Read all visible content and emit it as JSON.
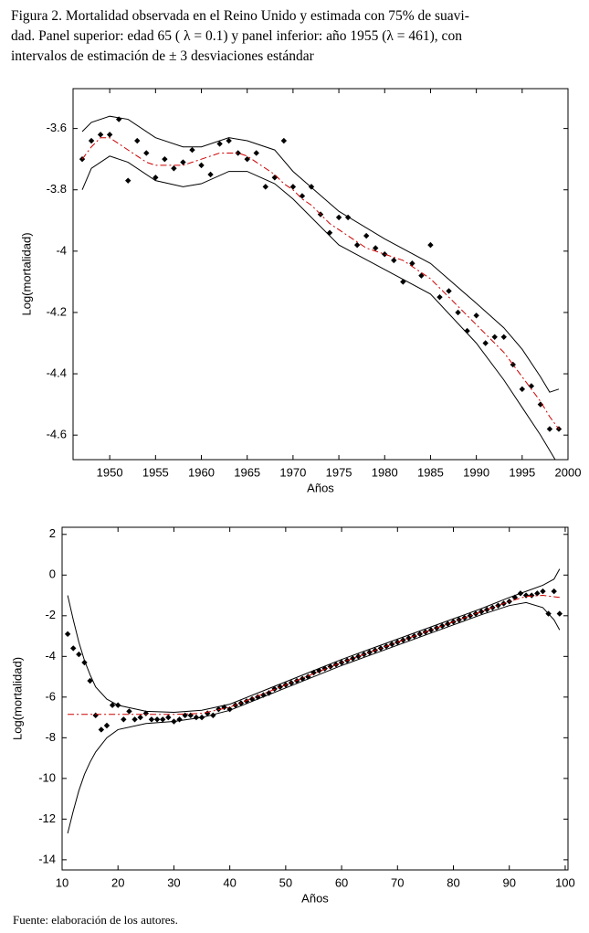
{
  "caption": [
    "Figura 2. Mortalidad observada en el Reino Unido y estimada con 75% de suavi-",
    "dad. Panel superior: edad 65 ( λ = 0.1) y panel inferior: año 1955 (λ = 461), con",
    "intervalos de estimación de ± 3 desviaciones estándar"
  ],
  "source": "Fuente: elaboración de los autores.",
  "chart_data": [
    {
      "type": "line",
      "xlabel": "Años",
      "ylabel": "Log(mortalidad)",
      "xlim": [
        1946,
        2000
      ],
      "ylim": [
        -4.68,
        -3.47
      ],
      "xticks": [
        1950,
        1955,
        1960,
        1965,
        1970,
        1975,
        1980,
        1985,
        1990,
        1995,
        2000
      ],
      "yticks": [
        -4.6,
        -4.4,
        -4.2,
        -4,
        -3.8,
        -3.6
      ],
      "series": [
        {
          "style": "markers",
          "color": "#000000",
          "x": [
            1947,
            1948,
            1949,
            1950,
            1951,
            1952,
            1953,
            1954,
            1955,
            1956,
            1957,
            1958,
            1959,
            1960,
            1961,
            1962,
            1963,
            1964,
            1965,
            1966,
            1967,
            1968,
            1969,
            1970,
            1971,
            1972,
            1973,
            1974,
            1975,
            1976,
            1977,
            1978,
            1979,
            1980,
            1981,
            1982,
            1983,
            1984,
            1985,
            1986,
            1987,
            1988,
            1989,
            1990,
            1991,
            1992,
            1993,
            1994,
            1995,
            1996,
            1997,
            1998,
            1999
          ],
          "values": [
            -3.7,
            -3.64,
            -3.62,
            -3.62,
            -3.57,
            -3.77,
            -3.64,
            -3.68,
            -3.76,
            -3.7,
            -3.73,
            -3.71,
            -3.67,
            -3.72,
            -3.75,
            -3.65,
            -3.64,
            -3.68,
            -3.7,
            -3.68,
            -3.79,
            -3.76,
            -3.64,
            -3.79,
            -3.82,
            -3.79,
            -3.88,
            -3.94,
            -3.89,
            -3.89,
            -3.98,
            -3.95,
            -3.99,
            -4.01,
            -4.03,
            -4.1,
            -4.04,
            -4.08,
            -3.98,
            -4.15,
            -4.13,
            -4.2,
            -4.26,
            -4.21,
            -4.3,
            -4.28,
            -4.28,
            -4.37,
            -4.45,
            -4.44,
            -4.5,
            -4.58,
            -4.58
          ]
        },
        {
          "style": "dashdot",
          "color": "#cc0000",
          "x": [
            1947,
            1948,
            1949,
            1950,
            1951,
            1952,
            1953,
            1954,
            1955,
            1956,
            1957,
            1958,
            1959,
            1960,
            1961,
            1962,
            1963,
            1964,
            1965,
            1966,
            1967,
            1968,
            1969,
            1970,
            1971,
            1972,
            1973,
            1974,
            1975,
            1976,
            1977,
            1978,
            1979,
            1980,
            1981,
            1982,
            1983,
            1984,
            1985,
            1986,
            1987,
            1988,
            1989,
            1990,
            1991,
            1992,
            1993,
            1994,
            1995,
            1996,
            1997,
            1998,
            1999
          ],
          "values": [
            -3.7,
            -3.66,
            -3.63,
            -3.63,
            -3.65,
            -3.67,
            -3.69,
            -3.71,
            -3.72,
            -3.72,
            -3.72,
            -3.72,
            -3.71,
            -3.7,
            -3.69,
            -3.68,
            -3.68,
            -3.68,
            -3.69,
            -3.71,
            -3.73,
            -3.75,
            -3.78,
            -3.8,
            -3.83,
            -3.85,
            -3.88,
            -3.91,
            -3.93,
            -3.95,
            -3.97,
            -3.99,
            -4.0,
            -4.01,
            -4.02,
            -4.03,
            -4.05,
            -4.07,
            -4.09,
            -4.12,
            -4.15,
            -4.18,
            -4.21,
            -4.24,
            -4.27,
            -4.3,
            -4.33,
            -4.37,
            -4.41,
            -4.45,
            -4.49,
            -4.54,
            -4.58
          ]
        },
        {
          "style": "solid",
          "color": "#000000",
          "x": [
            1947,
            1948,
            1950,
            1952,
            1955,
            1958,
            1960,
            1963,
            1965,
            1968,
            1970,
            1975,
            1980,
            1985,
            1990,
            1993,
            1995,
            1997,
            1998,
            1999
          ],
          "values": [
            -3.61,
            -3.58,
            -3.56,
            -3.57,
            -3.63,
            -3.66,
            -3.66,
            -3.63,
            -3.64,
            -3.67,
            -3.74,
            -3.87,
            -3.96,
            -4.04,
            -4.17,
            -4.25,
            -4.32,
            -4.41,
            -4.46,
            -4.45
          ]
        },
        {
          "style": "solid",
          "color": "#000000",
          "x": [
            1947,
            1948,
            1950,
            1952,
            1955,
            1958,
            1960,
            1963,
            1965,
            1968,
            1970,
            1975,
            1980,
            1985,
            1990,
            1993,
            1995,
            1997,
            1998,
            1999
          ],
          "values": [
            -3.8,
            -3.73,
            -3.69,
            -3.71,
            -3.77,
            -3.79,
            -3.78,
            -3.74,
            -3.74,
            -3.78,
            -3.83,
            -3.98,
            -4.06,
            -4.14,
            -4.3,
            -4.42,
            -4.51,
            -4.6,
            -4.65,
            -4.7
          ]
        }
      ]
    },
    {
      "type": "line",
      "xlabel": "Años",
      "ylabel": "Log(mortalidad)",
      "xlim": [
        10,
        100.5
      ],
      "ylim": [
        -14.5,
        2.35
      ],
      "xticks": [
        10,
        20,
        30,
        40,
        50,
        60,
        70,
        80,
        90,
        100
      ],
      "yticks": [
        -14,
        -12,
        -10,
        -8,
        -6,
        -4,
        -2,
        0,
        2
      ],
      "series": [
        {
          "style": "markers",
          "color": "#000000",
          "x": [
            11,
            12,
            13,
            14,
            15,
            16,
            17,
            18,
            19,
            20,
            21,
            22,
            23,
            24,
            25,
            26,
            27,
            28,
            29,
            30,
            31,
            32,
            33,
            34,
            35,
            36,
            37,
            38,
            39,
            40,
            41,
            42,
            43,
            44,
            45,
            46,
            47,
            48,
            49,
            50,
            51,
            52,
            53,
            54,
            55,
            56,
            57,
            58,
            59,
            60,
            61,
            62,
            63,
            64,
            65,
            66,
            67,
            68,
            69,
            70,
            71,
            72,
            73,
            74,
            75,
            76,
            77,
            78,
            79,
            80,
            81,
            82,
            83,
            84,
            85,
            86,
            87,
            88,
            89,
            90,
            91,
            92,
            93,
            94,
            95,
            96,
            97,
            98,
            99
          ],
          "values": [
            -2.9,
            -3.6,
            -3.9,
            -4.3,
            -5.2,
            -6.9,
            -7.6,
            -7.4,
            -6.4,
            -6.4,
            -7.1,
            -6.7,
            -7.1,
            -7.0,
            -6.8,
            -7.1,
            -7.1,
            -7.1,
            -7.0,
            -7.2,
            -7.1,
            -6.9,
            -6.9,
            -7.0,
            -7.0,
            -6.8,
            -6.9,
            -6.6,
            -6.5,
            -6.6,
            -6.4,
            -6.3,
            -6.2,
            -6.1,
            -6.0,
            -5.9,
            -5.8,
            -5.6,
            -5.5,
            -5.4,
            -5.3,
            -5.2,
            -5.1,
            -5.0,
            -4.8,
            -4.7,
            -4.6,
            -4.5,
            -4.4,
            -4.3,
            -4.2,
            -4.1,
            -4.0,
            -3.9,
            -3.8,
            -3.7,
            -3.6,
            -3.5,
            -3.4,
            -3.3,
            -3.2,
            -3.1,
            -3.0,
            -2.9,
            -2.8,
            -2.7,
            -2.6,
            -2.5,
            -2.4,
            -2.3,
            -2.2,
            -2.1,
            -2.0,
            -1.9,
            -1.8,
            -1.7,
            -1.6,
            -1.5,
            -1.4,
            -1.3,
            -1.1,
            -0.9,
            -1.0,
            -1.0,
            -0.9,
            -0.8,
            -1.9,
            -0.8,
            -1.9
          ]
        },
        {
          "style": "dashdot",
          "color": "#cc0000",
          "x": [
            11,
            15,
            20,
            25,
            30,
            35,
            40,
            45,
            50,
            55,
            60,
            65,
            70,
            75,
            80,
            85,
            90,
            93,
            96,
            99
          ],
          "values": [
            -6.85,
            -6.85,
            -6.85,
            -6.85,
            -6.85,
            -6.8,
            -6.5,
            -5.95,
            -5.4,
            -4.85,
            -4.3,
            -3.8,
            -3.3,
            -2.8,
            -2.3,
            -1.8,
            -1.3,
            -1.05,
            -1.0,
            -1.1
          ]
        },
        {
          "style": "solid",
          "color": "#000000",
          "x": [
            11,
            12,
            13,
            14,
            15,
            16,
            18,
            20,
            25,
            30,
            35,
            40,
            45,
            50,
            55,
            60,
            65,
            70,
            75,
            80,
            85,
            90,
            93,
            96,
            98,
            99
          ],
          "values": [
            -1.0,
            -2.2,
            -3.3,
            -4.2,
            -4.9,
            -5.5,
            -6.1,
            -6.4,
            -6.7,
            -6.75,
            -6.65,
            -6.35,
            -5.8,
            -5.25,
            -4.7,
            -4.15,
            -3.65,
            -3.15,
            -2.65,
            -2.15,
            -1.65,
            -1.1,
            -0.8,
            -0.5,
            -0.2,
            0.3
          ]
        },
        {
          "style": "solid",
          "color": "#000000",
          "x": [
            11,
            12,
            13,
            14,
            15,
            16,
            18,
            20,
            25,
            30,
            35,
            40,
            45,
            50,
            55,
            60,
            65,
            70,
            75,
            80,
            85,
            90,
            93,
            96,
            98,
            99
          ],
          "values": [
            -12.7,
            -11.6,
            -10.6,
            -9.8,
            -9.2,
            -8.7,
            -8.0,
            -7.6,
            -7.3,
            -7.2,
            -7.0,
            -6.65,
            -6.1,
            -5.55,
            -5.0,
            -4.45,
            -3.95,
            -3.45,
            -2.95,
            -2.45,
            -1.95,
            -1.5,
            -1.35,
            -1.6,
            -2.2,
            -2.7
          ]
        }
      ]
    }
  ]
}
